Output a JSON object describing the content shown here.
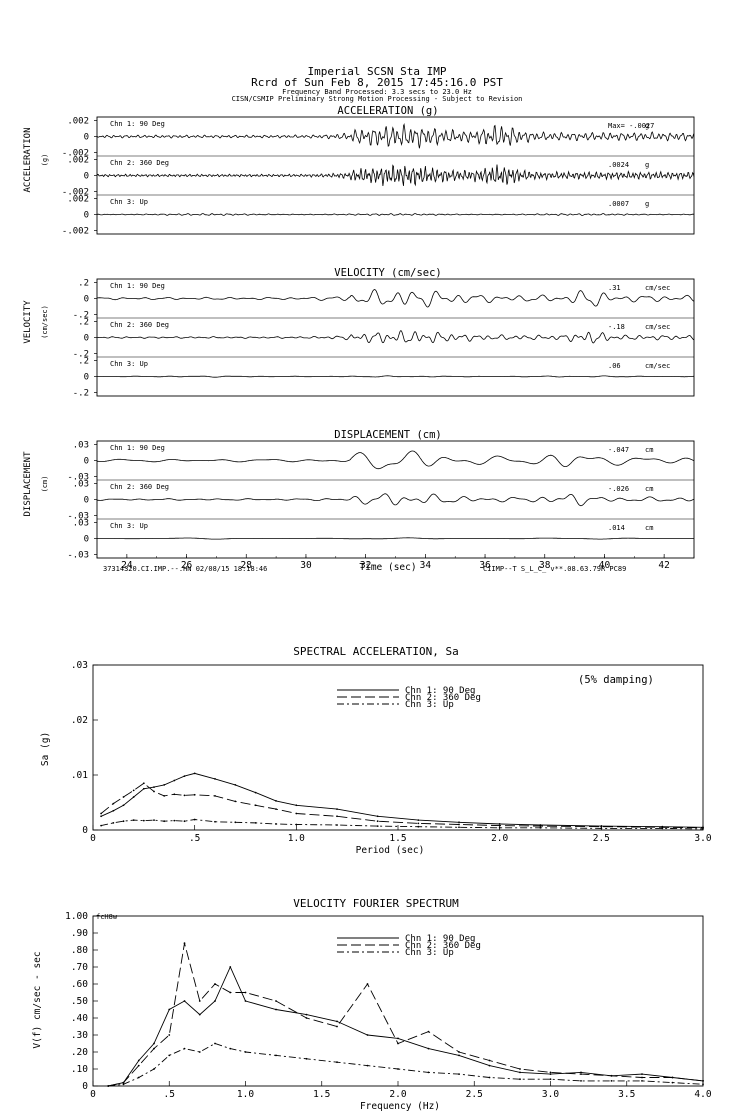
{
  "header": {
    "line1": "Imperial    SCSN Sta IMP",
    "line2": "Rcrd of Sun Feb  8, 2015 17:45:16.0 PST",
    "line3": "Frequency Band Processed: 3.3 secs to 23.0 Hz",
    "line4": "CISN/CSMIP Preliminary Strong Motion Processing - Subject to Revision"
  },
  "time_axis": {
    "ticks": [
      24,
      26,
      28,
      30,
      32,
      34,
      36,
      38,
      40,
      42
    ],
    "xlim": [
      23,
      43
    ],
    "label": "Time (sec)",
    "footer_left": "37314320.CI.IMP.--.HN 02/08/15 18:18:46",
    "footer_right": "CIIMP--T  S_L_C_  v**.08.63.79R PC89"
  },
  "panels": [
    {
      "key": "accel",
      "side_label": "ACCELERATION",
      "unit_label": "(g)",
      "title": "ACCELERATION (g)",
      "channels": [
        {
          "name": "Chn 1: 90 Deg",
          "peak": "Max= -.0027",
          "unit": "g",
          "ticks": [
            ".002",
            "0",
            "-.002"
          ]
        },
        {
          "name": "Chn 2: 360 Deg",
          "peak": ".0024",
          "unit": "g",
          "ticks": [
            ".002",
            "0",
            "-.002"
          ]
        },
        {
          "name": "Chn 3: Up",
          "peak": ".0007",
          "unit": "g",
          "ticks": [
            ".002",
            "0",
            "-.002"
          ]
        }
      ]
    },
    {
      "key": "vel",
      "side_label": "VELOCITY",
      "unit_label": "(cm/sec)",
      "title": "VELOCITY (cm/sec)",
      "channels": [
        {
          "name": "Chn 1: 90 Deg",
          "peak": ".31",
          "unit": "cm/sec",
          "ticks": [
            ".2",
            "0",
            "-.2"
          ]
        },
        {
          "name": "Chn 2: 360 Deg",
          "peak": "-.18",
          "unit": "cm/sec",
          "ticks": [
            ".2",
            "0",
            "-.2"
          ]
        },
        {
          "name": "Chn 3: Up",
          "peak": ".06",
          "unit": "cm/sec",
          "ticks": [
            ".2",
            "0",
            "-.2"
          ]
        }
      ]
    },
    {
      "key": "disp",
      "side_label": "DISPLACEMENT",
      "unit_label": "(cm)",
      "title": "DISPLACEMENT (cm)",
      "channels": [
        {
          "name": "Chn 1: 90 Deg",
          "peak": "-.047",
          "unit": "cm",
          "ticks": [
            ".03",
            "0",
            "-.03"
          ]
        },
        {
          "name": "Chn 2: 360 Deg",
          "peak": "-.026",
          "unit": "cm",
          "ticks": [
            ".03",
            "0",
            "-.03"
          ]
        },
        {
          "name": "Chn 3: Up",
          "peak": ".014",
          "unit": "cm",
          "ticks": [
            ".03",
            "0",
            "-.03"
          ]
        }
      ]
    }
  ],
  "chart_data": [
    {
      "type": "line",
      "title": "SPECTRAL ACCELERATION, Sa",
      "xlabel": "Period (sec)",
      "ylabel": "Sa (g)",
      "xlim": [
        0,
        3.0
      ],
      "ylim": [
        0,
        0.03
      ],
      "xticks": [
        "0",
        ".5",
        "1.0",
        "1.5",
        "2.0",
        "2.5",
        "3.0"
      ],
      "yticks": [
        "0",
        ".01",
        ".02",
        ".03"
      ],
      "annotation": "(5% damping)",
      "legend_position": "top-center",
      "x": [
        0.04,
        0.1,
        0.15,
        0.2,
        0.25,
        0.3,
        0.35,
        0.4,
        0.45,
        0.5,
        0.6,
        0.7,
        0.8,
        0.9,
        1.0,
        1.2,
        1.4,
        1.6,
        1.8,
        2.0,
        2.2,
        2.5,
        2.8,
        3.0
      ],
      "series": [
        {
          "name": "Chn 1: 90 Deg",
          "dash": "solid",
          "values": [
            0.0025,
            0.0035,
            0.0045,
            0.006,
            0.0075,
            0.0078,
            0.0082,
            0.009,
            0.0098,
            0.0103,
            0.0093,
            0.0082,
            0.0068,
            0.0053,
            0.0045,
            0.0038,
            0.0025,
            0.0018,
            0.0014,
            0.0011,
            0.0009,
            0.0007,
            0.0006,
            0.0005
          ]
        },
        {
          "name": "Chn 2: 360 Deg",
          "dash": "long",
          "values": [
            0.003,
            0.0048,
            0.006,
            0.0072,
            0.0085,
            0.007,
            0.0062,
            0.0065,
            0.0063,
            0.0064,
            0.0062,
            0.0052,
            0.0045,
            0.0038,
            0.003,
            0.0025,
            0.0016,
            0.0012,
            0.001,
            0.0008,
            0.0007,
            0.0006,
            0.0005,
            0.0004
          ]
        },
        {
          "name": "Chn 3: Up",
          "dash": "dashdot",
          "values": [
            0.0008,
            0.0013,
            0.0016,
            0.0018,
            0.0017,
            0.0018,
            0.0016,
            0.0017,
            0.0016,
            0.0019,
            0.0015,
            0.0014,
            0.0013,
            0.0011,
            0.001,
            0.0009,
            0.0007,
            0.0006,
            0.0005,
            0.0004,
            0.0004,
            0.0003,
            0.0003,
            0.0002
          ]
        }
      ]
    },
    {
      "type": "line",
      "title": "VELOCITY FOURIER SPECTRUM",
      "xlabel": "Frequency (Hz)",
      "ylabel": "V(f)   cm/sec - sec",
      "corner_label": "fcH8w",
      "xlim": [
        0,
        4.0
      ],
      "ylim": [
        0,
        1.0
      ],
      "xticks": [
        "0",
        ".5",
        "1.0",
        "1.5",
        "2.0",
        "2.5",
        "3.0",
        "3.5",
        "4.0"
      ],
      "yticks": [
        "0",
        ".10",
        ".20",
        ".30",
        ".40",
        ".50",
        ".60",
        ".70",
        ".80",
        ".90",
        "1.00"
      ],
      "legend_position": "top-center",
      "x": [
        0.1,
        0.2,
        0.3,
        0.4,
        0.5,
        0.6,
        0.7,
        0.8,
        0.9,
        1.0,
        1.2,
        1.4,
        1.6,
        1.8,
        2.0,
        2.2,
        2.4,
        2.6,
        2.8,
        3.0,
        3.2,
        3.4,
        3.6,
        3.8,
        4.0
      ],
      "series": [
        {
          "name": "Chn 1: 90 Deg",
          "dash": "solid",
          "values": [
            0.0,
            0.02,
            0.15,
            0.25,
            0.45,
            0.5,
            0.42,
            0.5,
            0.7,
            0.5,
            0.45,
            0.42,
            0.38,
            0.3,
            0.28,
            0.22,
            0.18,
            0.12,
            0.08,
            0.07,
            0.08,
            0.06,
            0.07,
            0.05,
            0.03
          ]
        },
        {
          "name": "Chn 2: 360 Deg",
          "dash": "long",
          "values": [
            0.0,
            0.02,
            0.12,
            0.22,
            0.3,
            0.84,
            0.5,
            0.6,
            0.55,
            0.55,
            0.5,
            0.4,
            0.35,
            0.6,
            0.25,
            0.32,
            0.2,
            0.15,
            0.1,
            0.08,
            0.07,
            0.06,
            0.05,
            0.05,
            0.03
          ]
        },
        {
          "name": "Chn 3: Up",
          "dash": "dashdot",
          "values": [
            0.0,
            0.01,
            0.05,
            0.1,
            0.18,
            0.22,
            0.2,
            0.25,
            0.22,
            0.2,
            0.18,
            0.16,
            0.14,
            0.12,
            0.1,
            0.08,
            0.07,
            0.05,
            0.04,
            0.04,
            0.03,
            0.03,
            0.03,
            0.02,
            0.01
          ]
        }
      ]
    }
  ]
}
